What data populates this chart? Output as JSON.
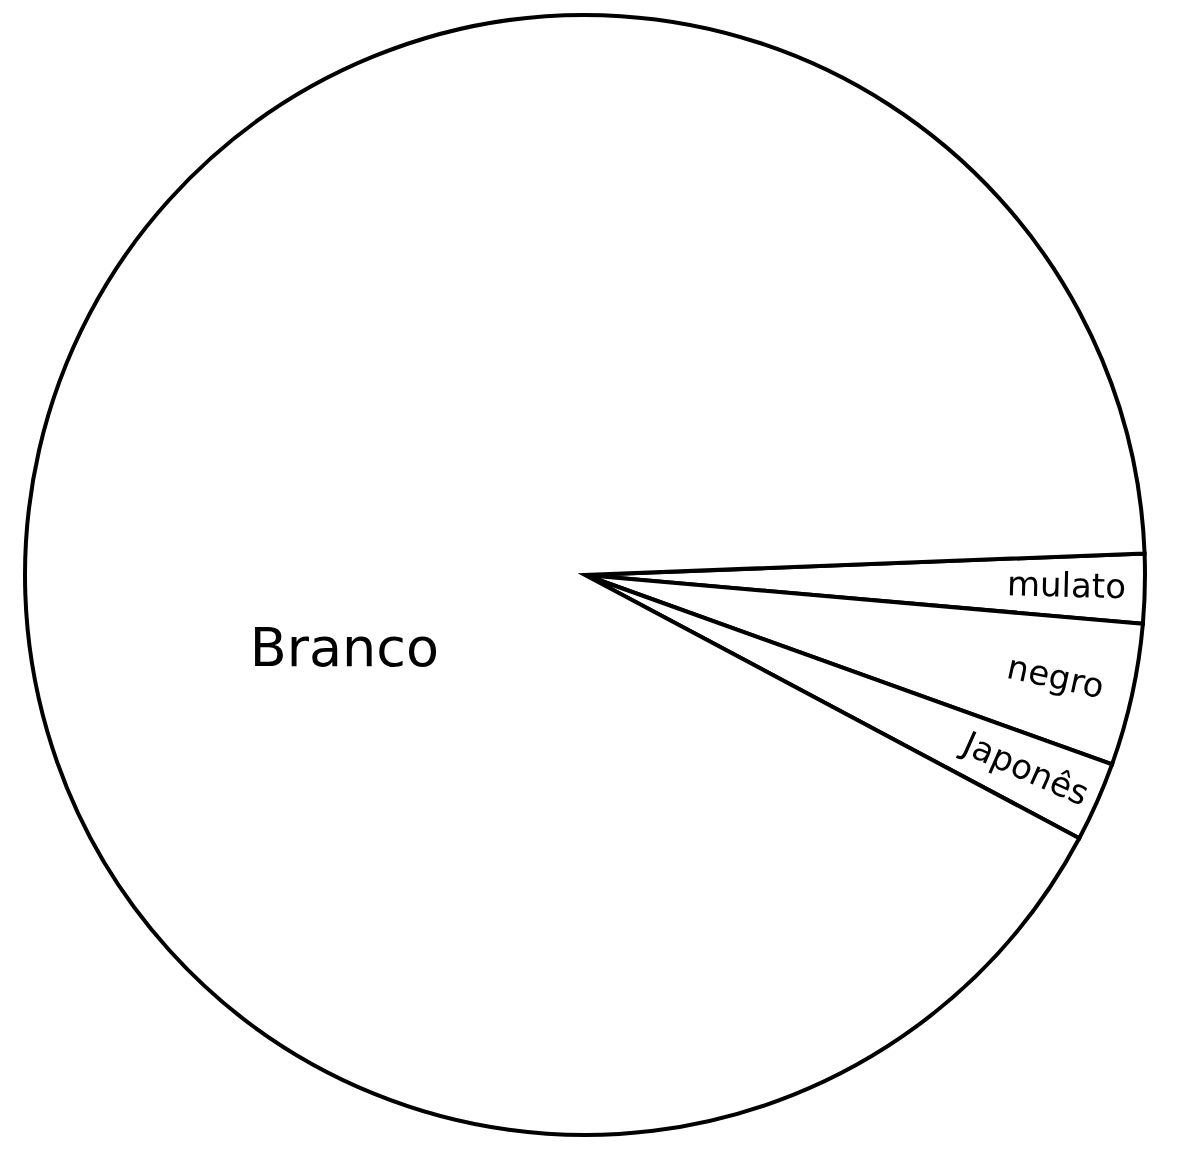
{
  "chart_data": {
    "type": "pie",
    "categories": [
      "mulato",
      "negro",
      "Japonês",
      "Branco"
    ],
    "values": [
      2.0,
      4.1,
      2.3,
      91.6
    ],
    "colors": [
      "#ffffff",
      "#ffffff",
      "#ffffff",
      "#ffffff"
    ]
  }
}
